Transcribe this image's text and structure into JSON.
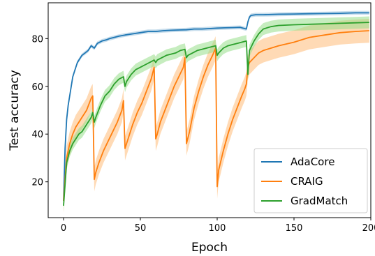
{
  "chart_data": {
    "type": "line",
    "title": "",
    "xlabel": "Epoch",
    "ylabel": "Test accuracy",
    "xlim": [
      -10,
      200
    ],
    "ylim": [
      5,
      95
    ],
    "xticks": [
      0,
      50,
      100,
      150,
      200
    ],
    "yticks": [
      20,
      40,
      60,
      80
    ],
    "grid": false,
    "legend_position": "bottom-right",
    "series": [
      {
        "name": "AdaCore",
        "color": "#1f77b4",
        "band_color": "#1f77b4",
        "band_width": 0.8,
        "x": [
          0,
          1,
          2,
          3,
          4,
          5,
          6,
          7,
          8,
          9,
          10,
          12,
          14,
          16,
          18,
          20,
          22,
          25,
          28,
          30,
          33,
          36,
          40,
          45,
          50,
          55,
          60,
          65,
          70,
          75,
          80,
          85,
          90,
          95,
          100,
          105,
          110,
          115,
          119,
          120,
          121,
          122,
          125,
          130,
          140,
          150,
          160,
          170,
          180,
          190,
          199
        ],
        "values": [
          12,
          34,
          46,
          52,
          56,
          60,
          64,
          66,
          68,
          70,
          71,
          73,
          74,
          75,
          77,
          76,
          78,
          79,
          79.5,
          80,
          80.5,
          81,
          81.5,
          82,
          82.5,
          83,
          83,
          83.3,
          83.5,
          83.6,
          83.7,
          84,
          84,
          84.2,
          84.4,
          84.5,
          84.6,
          84.7,
          84,
          87,
          89,
          89.7,
          90,
          90,
          90.2,
          90.3,
          90.4,
          90.5,
          90.6,
          90.8,
          90.8
        ]
      },
      {
        "name": "CRAIG",
        "color": "#ff7f0e",
        "band_color": "#ffbb78",
        "band_width": 5,
        "x": [
          0,
          2,
          4,
          6,
          8,
          10,
          12,
          15,
          18,
          19,
          20,
          21,
          23,
          26,
          29,
          32,
          35,
          38,
          39,
          40,
          42,
          45,
          48,
          51,
          54,
          57,
          59,
          60,
          61,
          63,
          66,
          69,
          72,
          75,
          78,
          79,
          80,
          82,
          85,
          88,
          91,
          94,
          97,
          99,
          100,
          101,
          104,
          107,
          110,
          113,
          116,
          118,
          119,
          120,
          121,
          124,
          127,
          130,
          135,
          140,
          150,
          160,
          170,
          180,
          190,
          199
        ],
        "values": [
          12,
          30,
          36,
          40,
          43,
          45,
          47,
          50,
          55,
          56,
          21,
          24,
          28,
          33,
          37,
          41,
          45,
          50,
          54,
          34,
          38,
          44,
          49,
          53,
          58,
          63,
          68,
          38,
          40,
          45,
          50,
          55,
          60,
          64,
          68,
          72,
          36,
          41,
          51,
          58,
          64,
          69,
          73,
          76,
          18,
          25,
          33,
          40,
          46,
          51,
          56,
          59,
          61,
          68,
          70,
          72,
          74,
          75,
          76,
          77,
          78.5,
          80.5,
          81.5,
          82.5,
          83,
          83.3
        ]
      },
      {
        "name": "GradMatch",
        "color": "#2ca02c",
        "band_color": "#98df8a",
        "band_width": 2.5,
        "x": [
          0,
          2,
          4,
          6,
          8,
          10,
          12,
          15,
          18,
          19,
          20,
          21,
          24,
          27,
          30,
          33,
          36,
          39,
          40,
          41,
          44,
          47,
          50,
          53,
          56,
          59,
          60,
          61,
          64,
          67,
          70,
          73,
          76,
          79,
          80,
          81,
          84,
          87,
          90,
          93,
          96,
          99,
          100,
          101,
          104,
          107,
          110,
          113,
          116,
          119,
          120,
          121,
          124,
          127,
          130,
          135,
          140,
          150,
          160,
          170,
          180,
          190,
          199
        ],
        "values": [
          10,
          28,
          33,
          36,
          38,
          40,
          41,
          44,
          47,
          49,
          45,
          47,
          52,
          56,
          58,
          61,
          63,
          64,
          60,
          62,
          65,
          67,
          68,
          69,
          70,
          71,
          70,
          71,
          72,
          73,
          73.5,
          74,
          75,
          75.5,
          72,
          73,
          74,
          75,
          75.5,
          76,
          76.5,
          77,
          73,
          74,
          76,
          77,
          77.5,
          78,
          78.5,
          79,
          65,
          75,
          79,
          82,
          84,
          85,
          85.5,
          85.8,
          86,
          86.2,
          86.4,
          86.6,
          86.8
        ]
      }
    ]
  }
}
